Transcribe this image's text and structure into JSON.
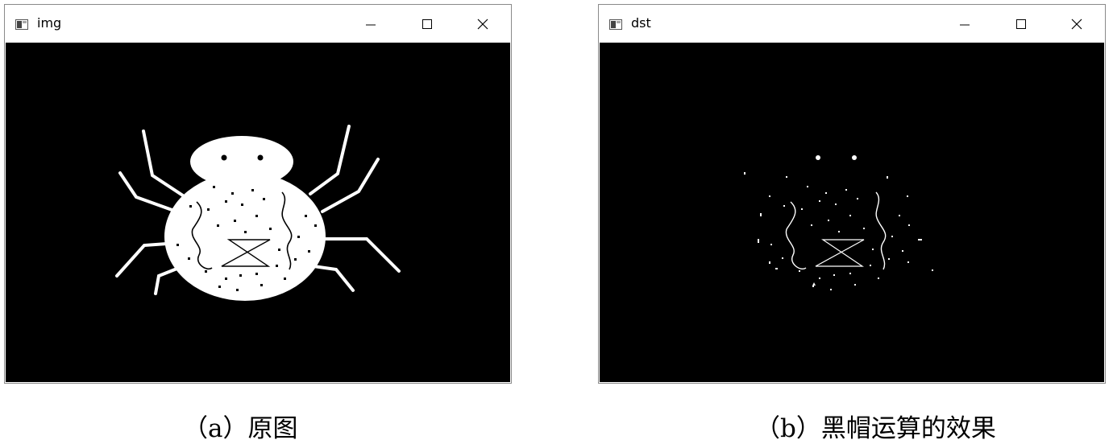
{
  "windows": [
    {
      "title": "img",
      "content": "spider-original",
      "controls": [
        "minimize-icon",
        "maximize-icon",
        "close-icon"
      ]
    },
    {
      "title": "dst",
      "content": "spider-black-hat-result",
      "controls": [
        "minimize-icon",
        "maximize-icon",
        "close-icon"
      ]
    }
  ],
  "captions": {
    "left": "（a）原图",
    "right": "（b）黑帽运算的效果"
  },
  "colors": {
    "canvas": "#000000",
    "foreground": "#ffffff",
    "window_border": "#8a8a8a",
    "titlebar": "#ffffff"
  }
}
